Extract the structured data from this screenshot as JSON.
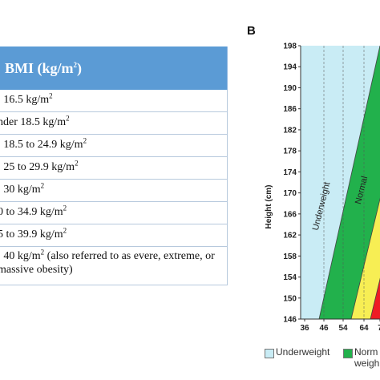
{
  "panel_a": {
    "header": "BMI (kg/m²)",
    "rows": [
      ": 16.5 kg/m²",
      "nder 18.5 kg/m²",
      ": 18.5 to 24.9 kg/m²",
      ": 25 to 29.9 kg/m²",
      ": 30 kg/m²",
      "0 to 34.9 kg/m²",
      "5 to 39.9 kg/m²",
      ": 40 kg/m² (also referred to as evere, extreme, or massive obesity)"
    ]
  },
  "panel_b": {
    "label": "B",
    "ylabel": "Height (cm)",
    "band_labels": [
      "Underweight",
      "Normal"
    ],
    "legend": [
      {
        "label": "Underweight",
        "color": "#c9ecf5"
      },
      {
        "label": "Norm",
        "label2": "weigh",
        "color": "#22b14c"
      }
    ]
  },
  "chart_data": {
    "type": "area",
    "ylabel": "Height (cm)",
    "xlabel": "",
    "x_ticks": [
      "36",
      "46",
      "54",
      "64",
      "7"
    ],
    "y_ticks": [
      146,
      150,
      154,
      158,
      162,
      166,
      170,
      174,
      178,
      182,
      186,
      190,
      194,
      198
    ],
    "ylim": [
      146,
      198
    ],
    "bands": [
      {
        "name": "Underweight",
        "color": "#c9ecf5"
      },
      {
        "name": "Normal",
        "color": "#22b14c"
      },
      {
        "name": "",
        "color": "#f7ee54"
      },
      {
        "name": "",
        "color": "#ee1c24"
      }
    ],
    "grid": true,
    "colors": {
      "grid": "#555555",
      "axis": "#333333"
    }
  }
}
